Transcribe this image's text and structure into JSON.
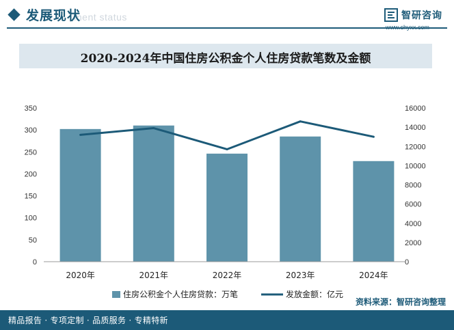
{
  "header": {
    "title": "发展现状",
    "subtitle_faded": "ment status",
    "logo_name": "智研咨询",
    "logo_url": "www.chyxx.com"
  },
  "footer": {
    "tagline": "精品报告 · 专项定制 · 品质服务 · 专精特新",
    "source": "资料来源：智研咨询整理"
  },
  "colors": {
    "bar": "#5e93aa",
    "line": "#1c5a78",
    "brand": "#1c5a78",
    "title_band": "#dde7ee"
  },
  "chart_data": {
    "type": "bar+line",
    "title": "2020-2024年中国住房公积金个人住房贷款笔数及金额",
    "categories": [
      "2020年",
      "2021年",
      "2022年",
      "2023年",
      "2024年"
    ],
    "series": [
      {
        "name": "住房公积金个人住房贷款：万笔",
        "type": "bar",
        "axis": "left",
        "values": [
          302,
          310,
          246,
          285,
          229
        ]
      },
      {
        "name": "发放金额：亿元",
        "type": "line",
        "axis": "right",
        "values": [
          13200,
          13900,
          11700,
          14600,
          13000
        ]
      }
    ],
    "y_left": {
      "min": 0,
      "max": 350,
      "ticks": [
        0,
        50,
        100,
        150,
        200,
        250,
        300,
        350
      ]
    },
    "y_right": {
      "min": 0,
      "max": 16000,
      "ticks": [
        0,
        2000,
        4000,
        6000,
        8000,
        10000,
        12000,
        14000,
        16000
      ]
    },
    "grid": false,
    "legend": "bottom"
  }
}
